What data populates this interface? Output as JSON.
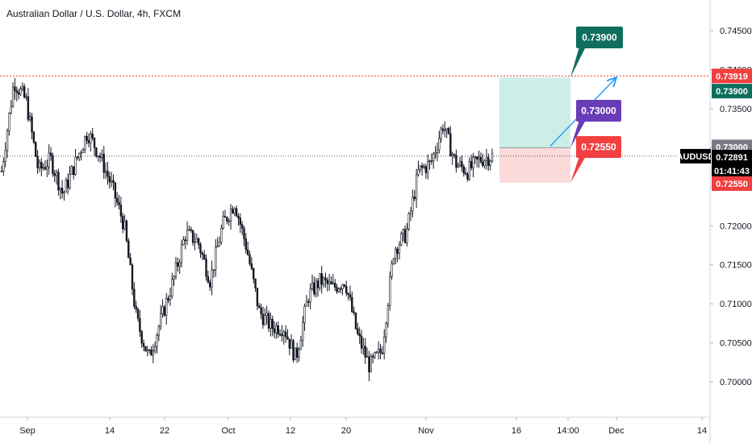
{
  "header": {
    "title": "Australian Dollar / U.S. Dollar, 4h, FXCM"
  },
  "colors": {
    "candle": "#131722",
    "target_zone": "#cdeee6",
    "stop_zone": "#fbdada",
    "target": "#0d6e5d",
    "entry": "#6a3cb8",
    "stop": "#f23f3f",
    "high_line": "#e53935",
    "last_price": "#000000",
    "arrow": "#2196f3"
  },
  "chart_data": {
    "type": "candlestick",
    "symbol": "AUDUSD",
    "timeframe": "4h",
    "y_ticks": [
      "0.74500",
      "0.74000",
      "0.73500",
      "0.73000",
      "0.72500",
      "0.72000",
      "0.71500",
      "0.71000",
      "0.70500",
      "0.70000"
    ],
    "ylim": [
      0.6965,
      0.7483
    ],
    "x_ticks": [
      "Sep",
      "14",
      "22",
      "Oct",
      "12",
      "20",
      "Nov",
      "16",
      "14:00",
      "Dec",
      "14"
    ],
    "price_series": [
      {
        "date": "Sep 1",
        "value": 0.727
      },
      {
        "date": "Sep 3",
        "value": 0.7385
      },
      {
        "date": "Sep 4",
        "value": 0.736
      },
      {
        "date": "Sep 8",
        "value": 0.727
      },
      {
        "date": "Sep 10",
        "value": 0.7285
      },
      {
        "date": "Sep 11",
        "value": 0.724
      },
      {
        "date": "Sep 14",
        "value": 0.728
      },
      {
        "date": "Sep 16",
        "value": 0.732
      },
      {
        "date": "Sep 18",
        "value": 0.729
      },
      {
        "date": "Sep 21",
        "value": 0.725
      },
      {
        "date": "Sep 22",
        "value": 0.72
      },
      {
        "date": "Sep 24",
        "value": 0.708
      },
      {
        "date": "Sep 25",
        "value": 0.703
      },
      {
        "date": "Sep 28",
        "value": 0.708
      },
      {
        "date": "Sep 30",
        "value": 0.713
      },
      {
        "date": "Oct 2",
        "value": 0.719
      },
      {
        "date": "Oct 5",
        "value": 0.718
      },
      {
        "date": "Oct 7",
        "value": 0.713
      },
      {
        "date": "Oct 9",
        "value": 0.72
      },
      {
        "date": "Oct 12",
        "value": 0.723
      },
      {
        "date": "Oct 14",
        "value": 0.717
      },
      {
        "date": "Oct 15",
        "value": 0.709
      },
      {
        "date": "Oct 16",
        "value": 0.707
      },
      {
        "date": "Oct 19",
        "value": 0.707
      },
      {
        "date": "Oct 20",
        "value": 0.703
      },
      {
        "date": "Oct 22",
        "value": 0.711
      },
      {
        "date": "Oct 23",
        "value": 0.713
      },
      {
        "date": "Oct 26",
        "value": 0.712
      },
      {
        "date": "Oct 28",
        "value": 0.713
      },
      {
        "date": "Oct 29",
        "value": 0.706
      },
      {
        "date": "Oct 30",
        "value": 0.702
      },
      {
        "date": "Nov 2",
        "value": 0.704
      },
      {
        "date": "Nov 3",
        "value": 0.717
      },
      {
        "date": "Nov 4",
        "value": 0.719
      },
      {
        "date": "Nov 5",
        "value": 0.727
      },
      {
        "date": "Nov 6",
        "value": 0.728
      },
      {
        "date": "Nov 9",
        "value": 0.733
      },
      {
        "date": "Nov 10",
        "value": 0.728
      },
      {
        "date": "Nov 11",
        "value": 0.727
      },
      {
        "date": "Nov 12",
        "value": 0.7285
      },
      {
        "date": "Nov 13",
        "value": 0.7289
      }
    ],
    "horizontal_line": {
      "value": 0.73919,
      "style": "dotted"
    },
    "last_price_line": {
      "value": 0.72891,
      "style": "dotted"
    },
    "position": {
      "target": 0.739,
      "entry": 0.73,
      "stop": 0.7255
    },
    "callouts": [
      {
        "role": "target",
        "label": "0.73900"
      },
      {
        "role": "entry",
        "label": "0.73000"
      },
      {
        "role": "stop",
        "label": "0.72550"
      }
    ],
    "axis_badges": [
      {
        "value": 0.73919,
        "label": "0.73919",
        "role": "high_line"
      },
      {
        "value": 0.739,
        "label": "0.73900",
        "role": "target"
      },
      {
        "value": 0.73,
        "label": "0.73000",
        "role": "entry"
      },
      {
        "value": 0.72891,
        "label": "AUDUSD",
        "role": "symbol"
      },
      {
        "value": 0.72891,
        "label": "0.72891",
        "role": "last_price"
      },
      {
        "value": 0.72891,
        "label": "01:41:43",
        "role": "countdown"
      },
      {
        "value": 0.7255,
        "label": "0.72550",
        "role": "stop"
      }
    ]
  }
}
